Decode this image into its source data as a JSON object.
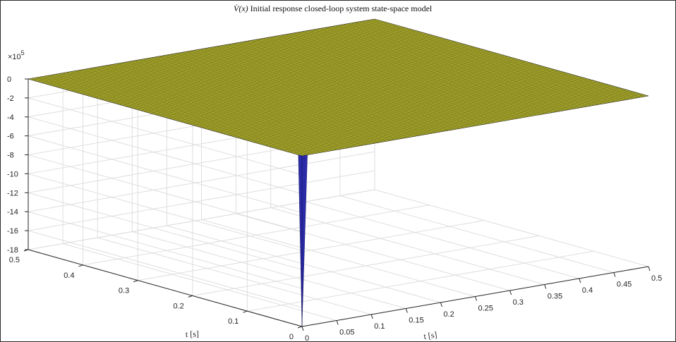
{
  "chart_data": {
    "type": "surface",
    "title": "V̇(x) Initial response closed-loop system state-space model",
    "title_symbol": "V̇(x)",
    "title_text": " Initial response closed-loop system state-space model",
    "xlabel": "t [s]",
    "ylabel": "t [s]",
    "zlabel": "",
    "x_ticks": [
      0,
      0.05,
      0.1,
      0.15,
      0.2,
      0.25,
      0.3,
      0.35,
      0.4,
      0.45,
      0.5
    ],
    "x_tick_labels": [
      "0",
      "0.05",
      "0.1",
      "0.15",
      "0.2",
      "0.25",
      "0.3",
      "0.35",
      "0.4",
      "0.45",
      "0.5"
    ],
    "y_ticks": [
      0,
      0.1,
      0.2,
      0.3,
      0.4,
      0.5
    ],
    "y_tick_labels": [
      "0",
      "0.1",
      "0.2",
      "0.3",
      "0.4",
      "0.5"
    ],
    "z_ticks": [
      0,
      -2,
      -4,
      -6,
      -8,
      -10,
      -12,
      -14,
      -16,
      -18
    ],
    "z_tick_labels": [
      "0",
      "-2",
      "-4",
      "-6",
      "-8",
      "-10",
      "-12",
      "-14",
      "-16",
      "-18"
    ],
    "z_exponent": "×10",
    "z_exponent_power": "5",
    "xlim": [
      0,
      0.5
    ],
    "ylim": [
      0,
      0.5
    ],
    "zlim": [
      -18,
      0
    ],
    "z_scale": 100000,
    "grid": true,
    "surface": {
      "plateau_value": 0,
      "spike_at": [
        0,
        0
      ],
      "spike_min": -18,
      "plateau_color": "#b5b52a",
      "mesh_color": "#1a1a1a",
      "spike_color": "#2a2aa8"
    }
  }
}
